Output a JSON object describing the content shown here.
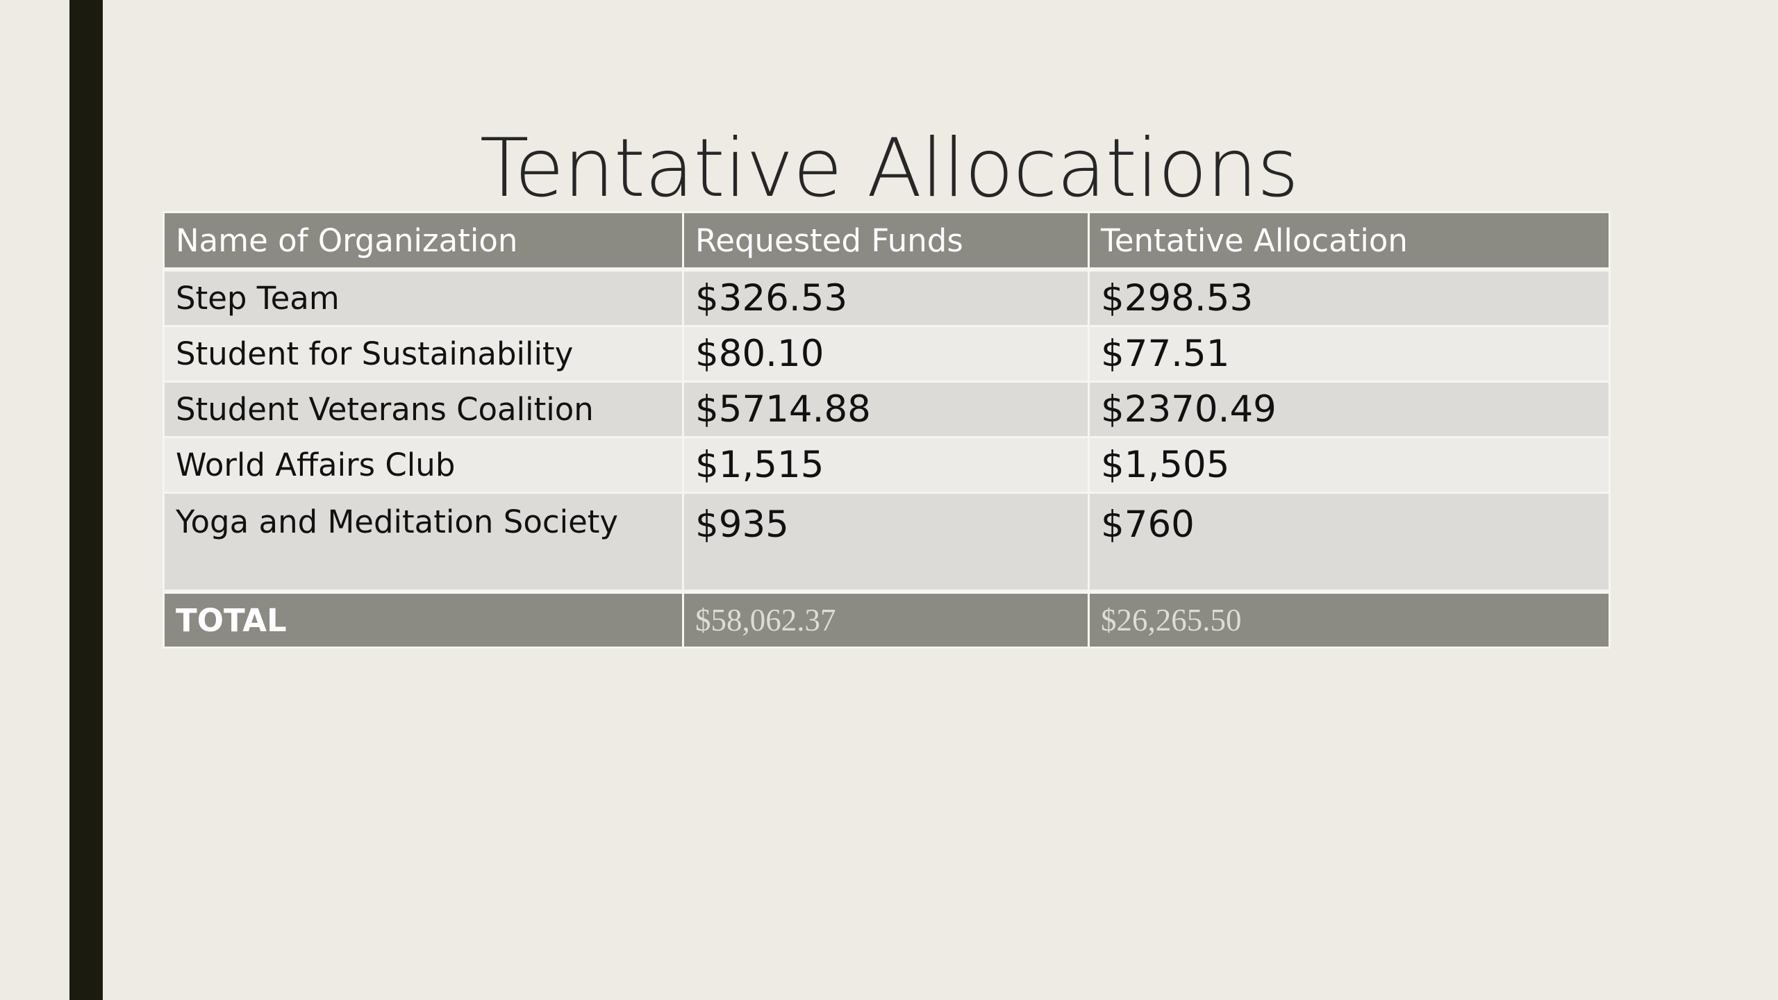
{
  "slide": {
    "title": "Tentative Allocations"
  },
  "table": {
    "headers": [
      "Name of Organization",
      "Requested Funds",
      "Tentative Allocation"
    ],
    "rows": [
      {
        "name": "Step Team",
        "requested": "$326.53",
        "allocation": "$298.53"
      },
      {
        "name": "Student for Sustainability",
        "requested": "$80.10",
        "allocation": "$77.51"
      },
      {
        "name": "Student Veterans Coalition",
        "requested": "$5714.88",
        "allocation": "$2370.49"
      },
      {
        "name": "World Affairs Club",
        "requested": "$1,515",
        "allocation": "$1,505"
      },
      {
        "name": "Yoga and Meditation Society",
        "requested": "$935",
        "allocation": "$760"
      }
    ],
    "total": {
      "label": "TOTAL",
      "requested": "$58,062.37",
      "allocation": "$26,265.50"
    }
  },
  "colors": {
    "background": "#eeebe4",
    "accent_bar": "#1b1b10",
    "header_fill": "#8b8a83",
    "row_dark": "#dcdbd8",
    "row_light": "#ecebe8"
  }
}
